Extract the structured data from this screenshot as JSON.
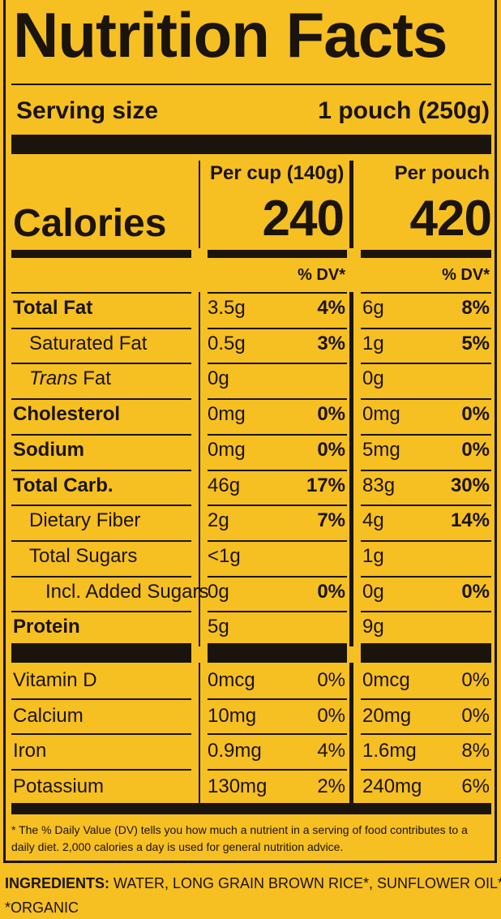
{
  "title": "Nutrition Facts",
  "serving": {
    "label": "Serving size",
    "value": "1 pouch (250g)"
  },
  "columns": {
    "per_cup": "Per cup (140g)",
    "per_pouch": "Per pouch"
  },
  "calories": {
    "label": "Calories",
    "per_cup": "240",
    "per_pouch": "420"
  },
  "dv_header": "% DV*",
  "nutrients": [
    {
      "name": "Total Fat",
      "style": "bold",
      "cup_amt": "3.5g",
      "cup_dv": "4%",
      "pouch_amt": "6g",
      "pouch_dv": "8%"
    },
    {
      "name": "Saturated Fat",
      "style": "indent",
      "cup_amt": "0.5g",
      "cup_dv": "3%",
      "pouch_amt": "1g",
      "pouch_dv": "5%"
    },
    {
      "name_pre": "Trans",
      "name": " Fat",
      "style": "indent",
      "cup_amt": "0g",
      "cup_dv": "",
      "pouch_amt": "0g",
      "pouch_dv": ""
    },
    {
      "name": "Cholesterol",
      "style": "bold",
      "cup_amt": "0mg",
      "cup_dv": "0%",
      "pouch_amt": "0mg",
      "pouch_dv": "0%"
    },
    {
      "name": "Sodium",
      "style": "bold",
      "cup_amt": "0mg",
      "cup_dv": "0%",
      "pouch_amt": "5mg",
      "pouch_dv": "0%"
    },
    {
      "name": "Total Carb.",
      "style": "bold",
      "cup_amt": "46g",
      "cup_dv": "17%",
      "pouch_amt": "83g",
      "pouch_dv": "30%"
    },
    {
      "name": "Dietary Fiber",
      "style": "indent",
      "cup_amt": "2g",
      "cup_dv": "7%",
      "pouch_amt": "4g",
      "pouch_dv": "14%"
    },
    {
      "name": "Total Sugars",
      "style": "indent",
      "cup_amt": "<1g",
      "cup_dv": "",
      "pouch_amt": "1g",
      "pouch_dv": ""
    },
    {
      "name": "Incl. Added Sugars",
      "style": "indent2",
      "cup_amt": "0g",
      "cup_dv": "0%",
      "pouch_amt": "0g",
      "pouch_dv": "0%"
    },
    {
      "name": "Protein",
      "style": "bold",
      "cup_amt": "5g",
      "cup_dv": "",
      "pouch_amt": "9g",
      "pouch_dv": ""
    }
  ],
  "vitamins": [
    {
      "name": "Vitamin D",
      "cup_amt": "0mcg",
      "cup_dv": "0%",
      "pouch_amt": "0mcg",
      "pouch_dv": "0%"
    },
    {
      "name": "Calcium",
      "cup_amt": "10mg",
      "cup_dv": "0%",
      "pouch_amt": "20mg",
      "pouch_dv": "0%"
    },
    {
      "name": "Iron",
      "cup_amt": "0.9mg",
      "cup_dv": "4%",
      "pouch_amt": "1.6mg",
      "pouch_dv": "8%"
    },
    {
      "name": "Potassium",
      "cup_amt": "130mg",
      "cup_dv": "2%",
      "pouch_amt": "240mg",
      "pouch_dv": "6%"
    }
  ],
  "footnote": "* The % Daily Value (DV) tells you how much a nutrient in a serving of food contributes to a daily diet. 2,000 calories a day is used for general nutrition advice.",
  "ingredients": {
    "label": "INGREDIENTS:",
    "text": " WATER, LONG GRAIN BROWN RICE*, SUNFLOWER OIL*."
  },
  "organic_note": "*ORGANIC"
}
